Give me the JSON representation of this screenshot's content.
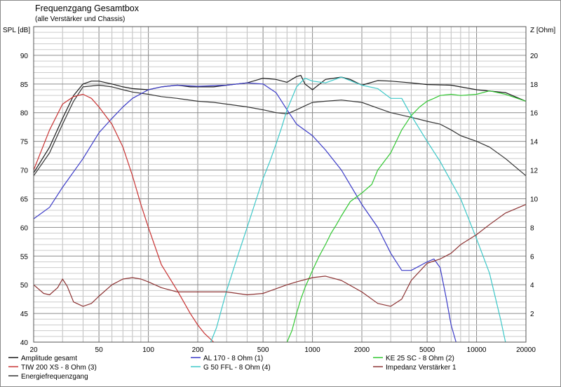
{
  "chart_data": {
    "type": "line",
    "title": "Frequenzgang Gesamtbox",
    "subtitle": "(alle Verstärker und Chassis)",
    "ylabel": "SPL [dB]",
    "y2label": "Z [Ohm]",
    "xscale": "log",
    "xlim": [
      20,
      20000
    ],
    "ylim": [
      40,
      95
    ],
    "y2lim": [
      0,
      22
    ],
    "xticks": [
      20,
      50,
      100,
      200,
      500,
      1000,
      2000,
      5000,
      10000,
      20000
    ],
    "xtick_labels": [
      "20",
      "50",
      "100",
      "200",
      "500",
      "1000",
      "2000",
      "5000",
      "10000",
      "20000"
    ],
    "yticks": [
      40,
      45,
      50,
      55,
      60,
      65,
      70,
      75,
      80,
      85,
      90
    ],
    "y2ticks": [
      2,
      4,
      6,
      8,
      10,
      12,
      14,
      16,
      18,
      20
    ],
    "grid": true,
    "legend_position": "bottom",
    "series": [
      {
        "name": "Amplitude gesamt",
        "color": "#1a1a1a",
        "axis": "left",
        "x": [
          20,
          25,
          30,
          35,
          40,
          45,
          50,
          60,
          70,
          80,
          100,
          120,
          150,
          180,
          200,
          250,
          300,
          400,
          500,
          600,
          700,
          800,
          850,
          900,
          1000,
          1200,
          1500,
          1700,
          2000,
          2500,
          3000,
          4000,
          5000,
          7000,
          10000,
          15000,
          20000
        ],
        "y": [
          69.5,
          74,
          79,
          83,
          85,
          85.5,
          85.5,
          85,
          84.5,
          84.2,
          84,
          84.5,
          84.8,
          84.5,
          84.5,
          84.5,
          84.8,
          85.2,
          86,
          85.8,
          85.3,
          86.3,
          86.5,
          85,
          84,
          85.8,
          86.2,
          85.8,
          84.8,
          85.6,
          85.5,
          85.2,
          84.9,
          84.8,
          84,
          83.5,
          82
        ]
      },
      {
        "name": "Energiefrequenzgang",
        "color": "#333333",
        "axis": "left",
        "x": [
          20,
          25,
          30,
          35,
          40,
          50,
          60,
          70,
          80,
          100,
          120,
          150,
          200,
          250,
          300,
          400,
          500,
          600,
          700,
          800,
          900,
          1000,
          1200,
          1500,
          2000,
          2500,
          3000,
          4000,
          5000,
          6000,
          7000,
          8000,
          10000,
          12000,
          15000,
          20000
        ],
        "y": [
          69,
          73,
          78,
          82,
          84.5,
          84.8,
          84.5,
          84,
          83.6,
          83.2,
          82.8,
          82.5,
          82,
          81.8,
          81.5,
          81,
          80.5,
          80,
          79.8,
          80.5,
          81.2,
          81.8,
          82,
          82.2,
          81.8,
          80.8,
          80,
          79.2,
          78.5,
          78,
          77,
          76,
          75,
          74,
          72,
          69
        ]
      },
      {
        "name": "AL 170 - 8 Ohm (1)",
        "color": "#3a3ac8",
        "axis": "left",
        "x": [
          20,
          25,
          30,
          40,
          50,
          60,
          70,
          80,
          100,
          120,
          150,
          200,
          300,
          400,
          500,
          600,
          700,
          800,
          1000,
          1200,
          1500,
          2000,
          2500,
          3000,
          3500,
          4000,
          5000,
          5500,
          6000,
          6500,
          7000,
          7500
        ],
        "y": [
          61.5,
          63.5,
          67,
          72,
          76.5,
          79,
          81,
          82.5,
          84,
          84.5,
          84.8,
          84.6,
          84.8,
          85.2,
          85,
          83.5,
          80.5,
          78,
          76,
          73.5,
          70,
          64,
          60,
          55.5,
          52.5,
          52.5,
          54,
          54.5,
          53,
          48,
          43,
          40
        ]
      },
      {
        "name": "TIW 200 XS - 8 Ohm (3)",
        "color": "#c83232",
        "axis": "left",
        "x": [
          20,
          25,
          30,
          35,
          40,
          45,
          50,
          60,
          70,
          80,
          90,
          100,
          120,
          150,
          180,
          200,
          220,
          250
        ],
        "y": [
          70,
          77,
          81.5,
          82.8,
          83.2,
          82.5,
          81,
          78,
          74,
          69,
          64,
          60,
          53.5,
          49,
          45,
          43,
          41.5,
          40
        ]
      },
      {
        "name": "G 50 FFL - 8 Ohm (4)",
        "color": "#3cc8c8",
        "axis": "left",
        "x": [
          240,
          260,
          300,
          350,
          400,
          450,
          500,
          550,
          600,
          650,
          700,
          800,
          900,
          1000,
          1200,
          1500,
          2000,
          2500,
          3000,
          3500,
          4000,
          5000,
          6000,
          7000,
          8000,
          10000,
          12000,
          14000,
          15000
        ],
        "y": [
          40,
          42.5,
          49,
          55,
          60,
          64.5,
          68.5,
          71.5,
          74.5,
          77.5,
          80.5,
          84.5,
          86,
          85.5,
          85.2,
          86.2,
          84.8,
          84.2,
          82.5,
          82.5,
          79.5,
          75,
          71.5,
          68,
          65,
          58,
          52,
          44,
          40
        ]
      },
      {
        "name": "KE 25 SC - 8 Ohm (2)",
        "color": "#32c832",
        "axis": "left",
        "x": [
          700,
          750,
          800,
          850,
          900,
          1000,
          1100,
          1200,
          1300,
          1400,
          1500,
          1700,
          2000,
          2300,
          2500,
          3000,
          3500,
          4000,
          4500,
          5000,
          5500,
          6000,
          7000,
          8000,
          10000,
          12000,
          15000,
          20000
        ],
        "y": [
          40,
          42,
          45,
          47.5,
          49.5,
          52.5,
          55,
          57,
          59,
          60.5,
          62,
          64.5,
          66,
          67.5,
          70,
          73,
          77,
          79.5,
          81,
          82,
          82.5,
          83,
          83.2,
          83,
          83.2,
          83.8,
          83.2,
          82
        ]
      },
      {
        "name": "Impedanz Verstärker 1",
        "color": "#8c3232",
        "axis": "right",
        "x": [
          20,
          23,
          25,
          28,
          30,
          32,
          35,
          40,
          45,
          50,
          60,
          70,
          80,
          90,
          100,
          120,
          150,
          200,
          300,
          400,
          500,
          700,
          800,
          1000,
          1200,
          1500,
          2000,
          2500,
          3000,
          3500,
          4000,
          5000,
          6000,
          7000,
          8000,
          10000,
          12000,
          15000,
          20000
        ],
        "y": [
          4,
          3.4,
          3.3,
          3.8,
          4.4,
          3.9,
          2.8,
          2.5,
          2.7,
          3.2,
          4,
          4.4,
          4.5,
          4.4,
          4.2,
          3.8,
          3.5,
          3.5,
          3.5,
          3.3,
          3.4,
          4,
          4.2,
          4.5,
          4.6,
          4.3,
          3.5,
          2.7,
          2.5,
          3,
          4.3,
          5.5,
          5.8,
          6.2,
          6.8,
          7.5,
          8.2,
          9,
          9.6
        ]
      }
    ]
  }
}
